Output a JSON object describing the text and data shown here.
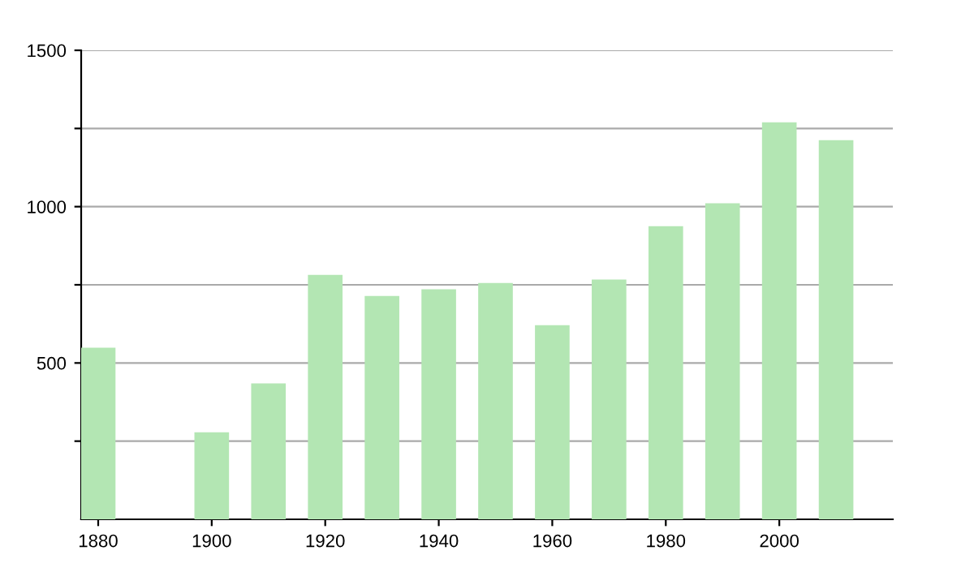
{
  "chart_data": {
    "type": "bar",
    "x": [
      1880,
      1890,
      1900,
      1910,
      1920,
      1930,
      1940,
      1950,
      1960,
      1970,
      1980,
      1990,
      2000,
      2010
    ],
    "values": [
      545,
      null,
      275,
      431,
      778,
      711,
      732,
      752,
      617,
      763,
      934,
      1007,
      1266,
      1209
    ],
    "color": "#b3e6b3",
    "xlim": [
      1877,
      2020
    ],
    "xticks": [
      1880,
      1900,
      1920,
      1940,
      1960,
      1980,
      2000
    ],
    "ylim": [
      0,
      1500
    ],
    "yticks": [
      {
        "value": 250,
        "label": null
      },
      500,
      {
        "value": 750,
        "label": null
      },
      1000,
      {
        "value": 1250,
        "label": null
      },
      1500
    ],
    "grid": "y",
    "legend": false
  }
}
